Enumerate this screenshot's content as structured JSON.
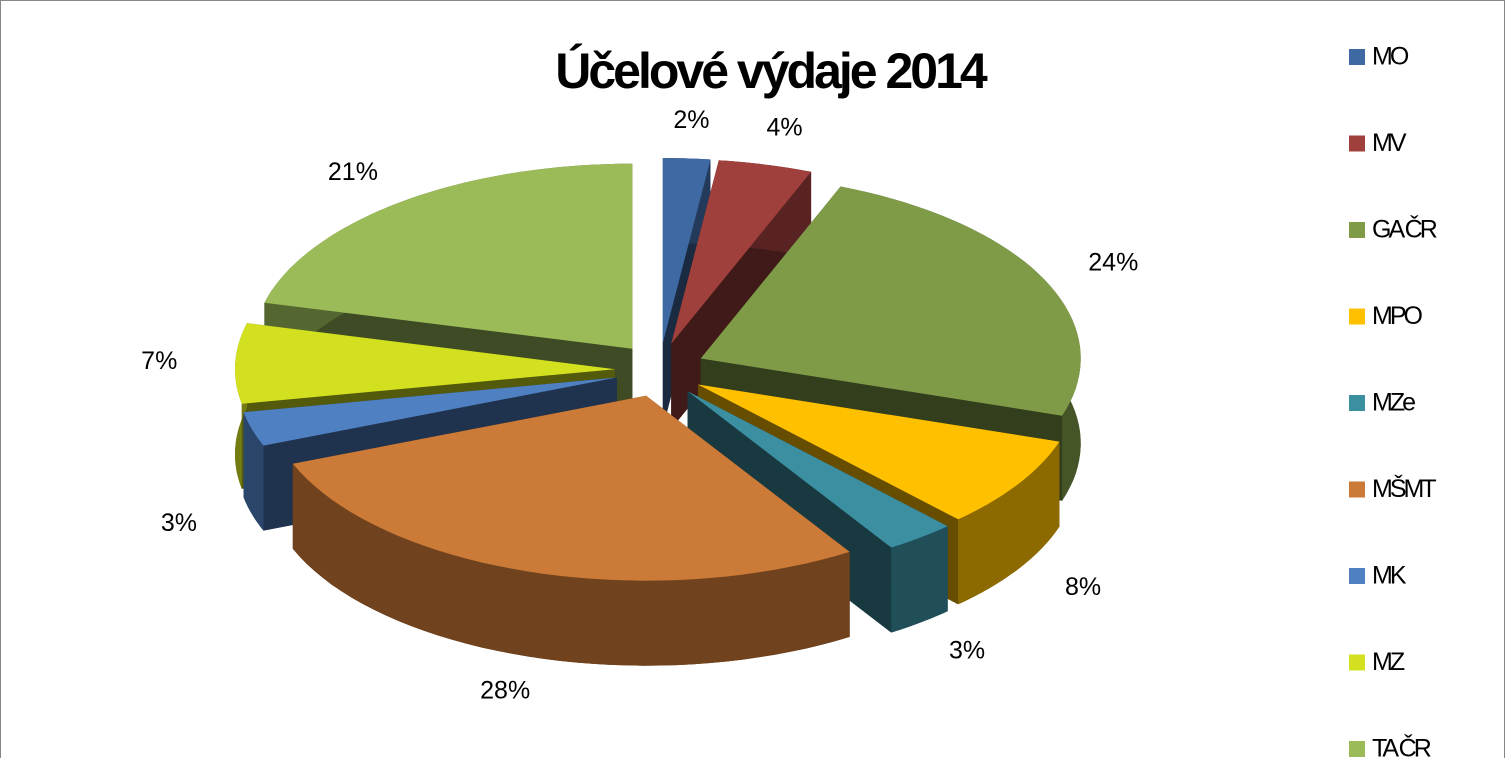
{
  "chart_data": {
    "type": "pie",
    "title": "Účelové výdaje 2014",
    "categories": [
      "MO",
      "MV",
      "GA ČR",
      "MPO",
      "MZe",
      "MŠMT",
      "MK",
      "MZ",
      "TA ČR"
    ],
    "values": [
      2,
      4,
      24,
      8,
      3,
      28,
      3,
      7,
      21
    ],
    "value_labels": [
      "2%",
      "4%",
      "24%",
      "8%",
      "3%",
      "28%",
      "3%",
      "7%",
      "21%"
    ],
    "colors": [
      "#3f69a3",
      "#a0403d",
      "#7f9b48",
      "#ffc000",
      "#3b8fa1",
      "#cb7a37",
      "#4f80c2",
      "#d3e01f",
      "#9bbb59"
    ],
    "legend": "right"
  }
}
